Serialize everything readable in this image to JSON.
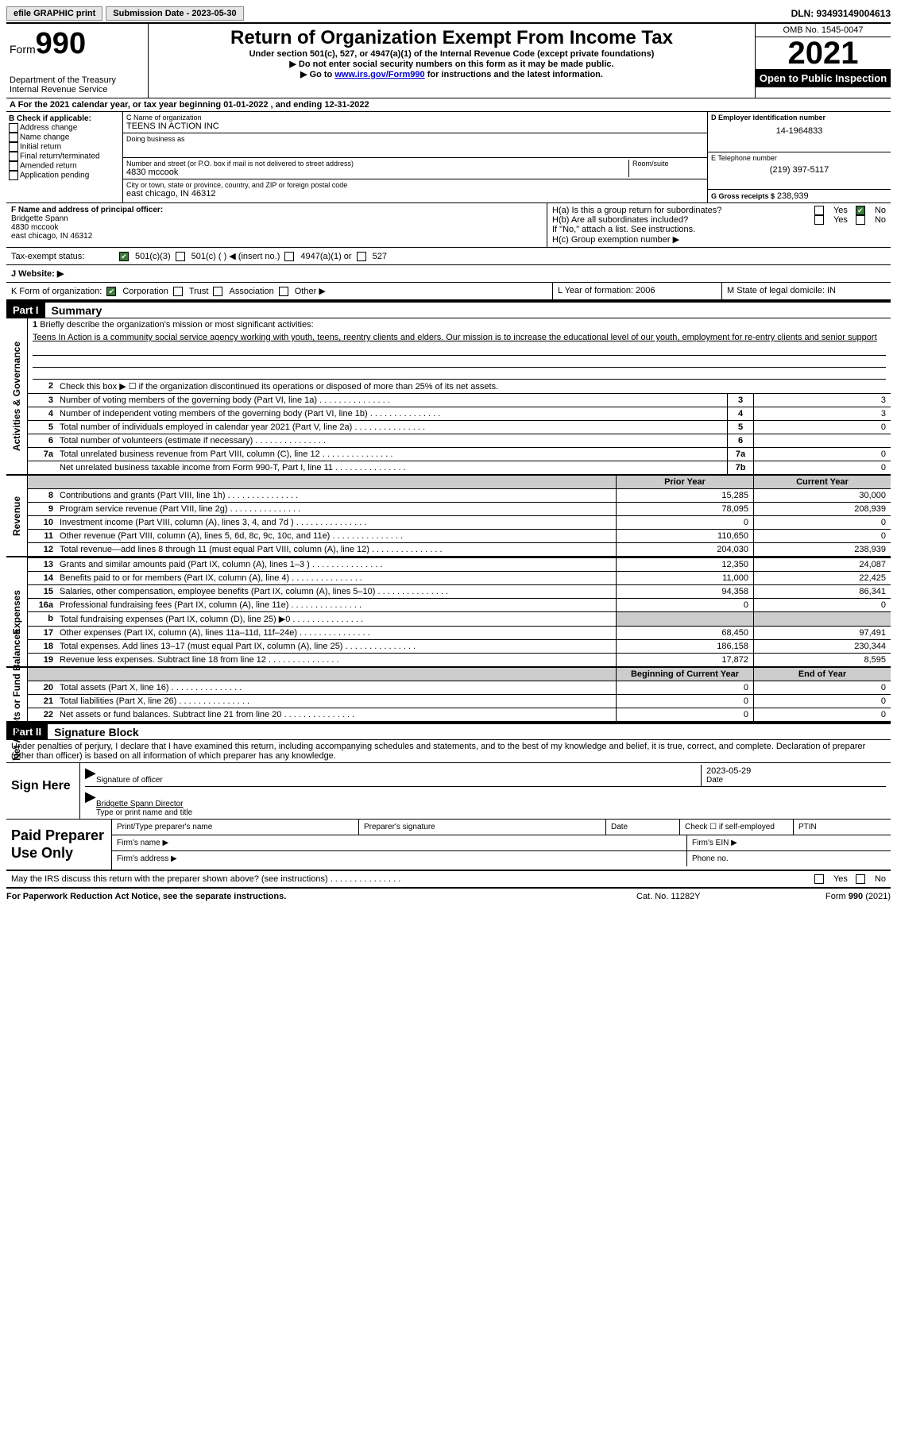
{
  "topbar": {
    "efile": "efile GRAPHIC print",
    "submission": "Submission Date - 2023-05-30",
    "dln": "DLN: 93493149004613"
  },
  "header": {
    "form_label": "Form",
    "form_num": "990",
    "dept1": "Department of the Treasury",
    "dept2": "Internal Revenue Service",
    "title": "Return of Organization Exempt From Income Tax",
    "sub1": "Under section 501(c), 527, or 4947(a)(1) of the Internal Revenue Code (except private foundations)",
    "sub2": "Do not enter social security numbers on this form as it may be made public.",
    "sub3_pre": "Go to ",
    "sub3_link": "www.irs.gov/Form990",
    "sub3_post": " for instructions and the latest information.",
    "omb": "OMB No. 1545-0047",
    "year": "2021",
    "open": "Open to Public Inspection"
  },
  "row_a": "A For the 2021 calendar year, or tax year beginning 01-01-2022    , and ending 12-31-2022",
  "box_b": {
    "title": "B Check if applicable:",
    "opts": [
      "Address change",
      "Name change",
      "Initial return",
      "Final return/terminated",
      "Amended return",
      "Application pending"
    ]
  },
  "box_c": {
    "name_label": "C Name of organization",
    "name": "TEENS IN ACTION INC",
    "dba_label": "Doing business as",
    "addr_label": "Number and street (or P.O. box if mail is not delivered to street address)",
    "room_label": "Room/suite",
    "addr": "4830 mccook",
    "city_label": "City or town, state or province, country, and ZIP or foreign postal code",
    "city": "east chicago, IN  46312"
  },
  "box_d": {
    "ein_label": "D Employer identification number",
    "ein": "14-1964833",
    "tel_label": "E Telephone number",
    "tel": "(219) 397-5117",
    "gross_label": "G Gross receipts $",
    "gross": "238,939"
  },
  "box_f": {
    "label": "F  Name and address of principal officer:",
    "name": "Bridgette Spann",
    "addr": "4830 mccook",
    "city": "east chicago, IN  46312"
  },
  "box_h": {
    "ha": "H(a)  Is this a group return for subordinates?",
    "hb": "H(b)  Are all subordinates included?",
    "hb_note": "If \"No,\" attach a list. See instructions.",
    "hc": "H(c)  Group exemption number ▶",
    "yes": "Yes",
    "no": "No"
  },
  "tax_status": {
    "label": "Tax-exempt status:",
    "o1": "501(c)(3)",
    "o2": "501(c) (  ) ◀ (insert no.)",
    "o3": "4947(a)(1) or",
    "o4": "527"
  },
  "website": "J  Website: ▶",
  "row_k": {
    "k": "K Form of organization:",
    "corp": "Corporation",
    "trust": "Trust",
    "assoc": "Association",
    "other": "Other ▶",
    "l": "L Year of formation: 2006",
    "m": "M State of legal domicile: IN"
  },
  "part1": {
    "part": "Part I",
    "title": "Summary",
    "vlabels": [
      "Activities & Governance",
      "Revenue",
      "Expenses",
      "Net Assets or Fund Balances"
    ],
    "q1_label": "1",
    "q1_text": "Briefly describe the organization's mission or most significant activities:",
    "mission": "Teens In Action is a community social service agency working with youth, teens, reentry clients and elders. Our mission is to increase the educational level of our youth, employment for re-entry clients and senior support",
    "q2": "Check this box ▶ ☐  if the organization discontinued its operations or disposed of more than 25% of its net assets.",
    "lines_gov": [
      {
        "n": "3",
        "d": "Number of voting members of the governing body (Part VI, line 1a)",
        "box": "3",
        "v": "3"
      },
      {
        "n": "4",
        "d": "Number of independent voting members of the governing body (Part VI, line 1b)",
        "box": "4",
        "v": "3"
      },
      {
        "n": "5",
        "d": "Total number of individuals employed in calendar year 2021 (Part V, line 2a)",
        "box": "5",
        "v": "0"
      },
      {
        "n": "6",
        "d": "Total number of volunteers (estimate if necessary)",
        "box": "6",
        "v": ""
      },
      {
        "n": "7a",
        "d": "Total unrelated business revenue from Part VIII, column (C), line 12",
        "box": "7a",
        "v": "0"
      },
      {
        "n": "",
        "d": "Net unrelated business taxable income from Form 990-T, Part I, line 11",
        "box": "7b",
        "v": "0"
      }
    ],
    "py_hdr": "Prior Year",
    "cy_hdr": "Current Year",
    "lines_rev": [
      {
        "n": "8",
        "d": "Contributions and grants (Part VIII, line 1h)",
        "py": "15,285",
        "cy": "30,000"
      },
      {
        "n": "9",
        "d": "Program service revenue (Part VIII, line 2g)",
        "py": "78,095",
        "cy": "208,939"
      },
      {
        "n": "10",
        "d": "Investment income (Part VIII, column (A), lines 3, 4, and 7d )",
        "py": "0",
        "cy": "0"
      },
      {
        "n": "11",
        "d": "Other revenue (Part VIII, column (A), lines 5, 6d, 8c, 9c, 10c, and 11e)",
        "py": "110,650",
        "cy": "0"
      },
      {
        "n": "12",
        "d": "Total revenue—add lines 8 through 11 (must equal Part VIII, column (A), line 12)",
        "py": "204,030",
        "cy": "238,939"
      }
    ],
    "lines_exp": [
      {
        "n": "13",
        "d": "Grants and similar amounts paid (Part IX, column (A), lines 1–3 )",
        "py": "12,350",
        "cy": "24,087"
      },
      {
        "n": "14",
        "d": "Benefits paid to or for members (Part IX, column (A), line 4)",
        "py": "11,000",
        "cy": "22,425"
      },
      {
        "n": "15",
        "d": "Salaries, other compensation, employee benefits (Part IX, column (A), lines 5–10)",
        "py": "94,358",
        "cy": "86,341"
      },
      {
        "n": "16a",
        "d": "Professional fundraising fees (Part IX, column (A), line 11e)",
        "py": "0",
        "cy": "0"
      },
      {
        "n": "b",
        "d": "Total fundraising expenses (Part IX, column (D), line 25) ▶0",
        "py": "",
        "cy": "",
        "shade": true
      },
      {
        "n": "17",
        "d": "Other expenses (Part IX, column (A), lines 11a–11d, 11f–24e)",
        "py": "68,450",
        "cy": "97,491"
      },
      {
        "n": "18",
        "d": "Total expenses. Add lines 13–17 (must equal Part IX, column (A), line 25)",
        "py": "186,158",
        "cy": "230,344"
      },
      {
        "n": "19",
        "d": "Revenue less expenses. Subtract line 18 from line 12",
        "py": "17,872",
        "cy": "8,595"
      }
    ],
    "boy_hdr": "Beginning of Current Year",
    "eoy_hdr": "End of Year",
    "lines_net": [
      {
        "n": "20",
        "d": "Total assets (Part X, line 16)",
        "py": "0",
        "cy": "0"
      },
      {
        "n": "21",
        "d": "Total liabilities (Part X, line 26)",
        "py": "0",
        "cy": "0"
      },
      {
        "n": "22",
        "d": "Net assets or fund balances. Subtract line 21 from line 20",
        "py": "0",
        "cy": "0"
      }
    ]
  },
  "part2": {
    "part": "Part II",
    "title": "Signature Block",
    "decl": "Under penalties of perjury, I declare that I have examined this return, including accompanying schedules and statements, and to the best of my knowledge and belief, it is true, correct, and complete. Declaration of preparer (other than officer) is based on all information of which preparer has any knowledge.",
    "sign_here": "Sign Here",
    "sig_officer": "Signature of officer",
    "sig_date": "2023-05-29",
    "date_label": "Date",
    "officer_name": "Bridgette Spann  Director",
    "type_name": "Type or print name and title",
    "paid": "Paid Preparer Use Only",
    "pp_name": "Print/Type preparer's name",
    "pp_sig": "Preparer's signature",
    "pp_date": "Date",
    "pp_check": "Check ☐ if self-employed",
    "pp_ptin": "PTIN",
    "firm_name": "Firm's name    ▶",
    "firm_ein": "Firm's EIN ▶",
    "firm_addr": "Firm's address ▶",
    "phone": "Phone no.",
    "discuss": "May the IRS discuss this return with the preparer shown above? (see instructions)"
  },
  "footer": {
    "left": "For Paperwork Reduction Act Notice, see the separate instructions.",
    "mid": "Cat. No. 11282Y",
    "right": "Form 990 (2021)"
  }
}
